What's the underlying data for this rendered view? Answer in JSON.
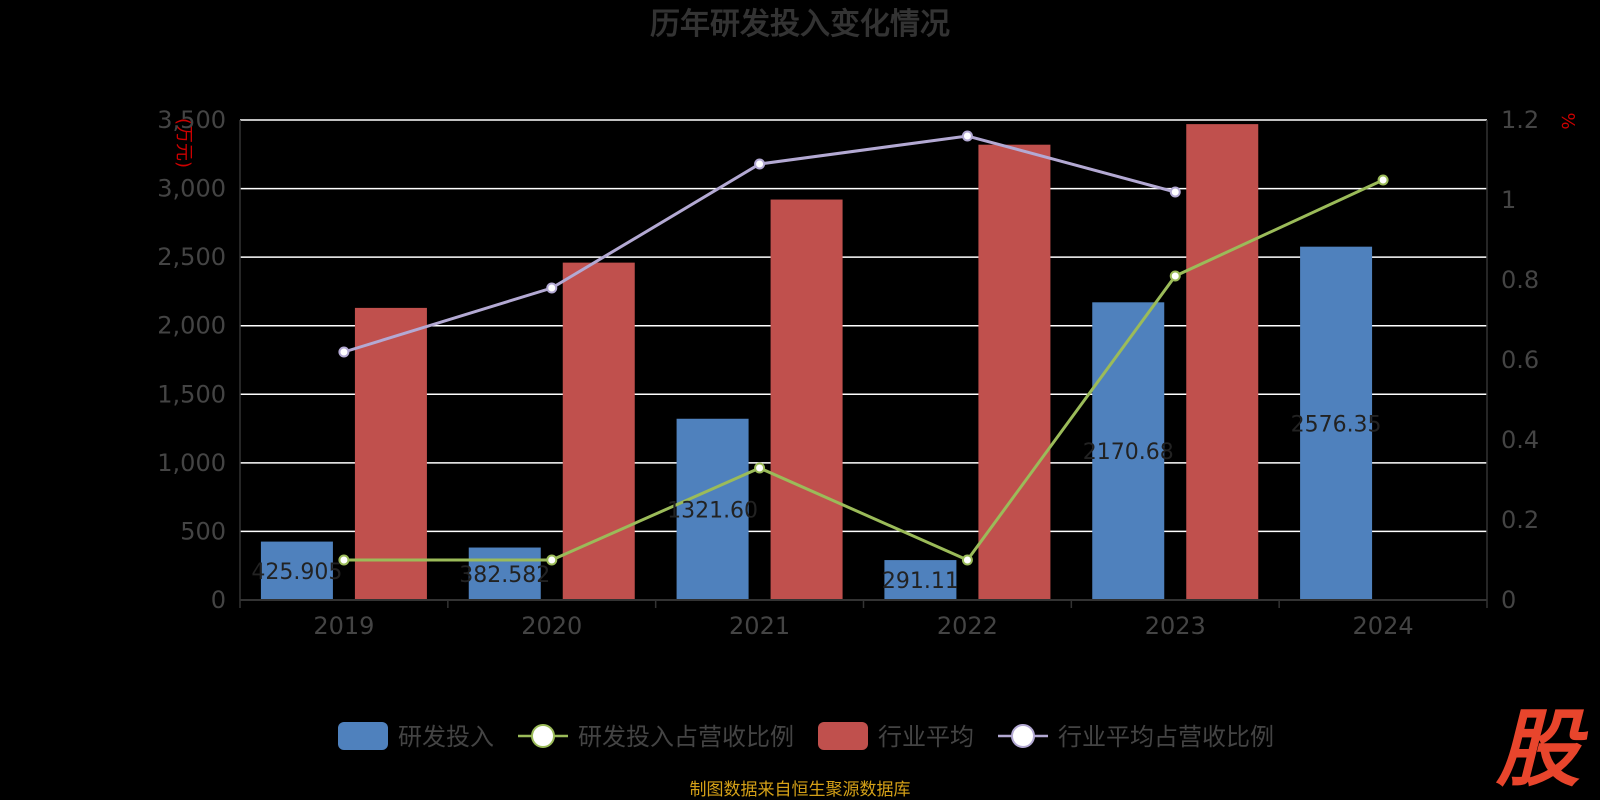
{
  "chart_data": {
    "type": "bar",
    "title": "历年研发投入变化情况",
    "categories": [
      "2019",
      "2020",
      "2021",
      "2022",
      "2023",
      "2024"
    ],
    "y_left": {
      "unit": "(万元)",
      "range": [
        0,
        3500
      ],
      "ticks": [
        "0",
        "500",
        "1,000",
        "1,500",
        "2,000",
        "2,500",
        "3,000",
        "3,500"
      ]
    },
    "y_right": {
      "unit": "%",
      "range": [
        0,
        1.2
      ],
      "ticks": [
        "0",
        "0.2",
        "0.4",
        "0.6",
        "0.8",
        "1",
        "1.2"
      ]
    },
    "series": [
      {
        "name": "研发投入",
        "type": "bar",
        "axis": "left",
        "color": "#4f81bd",
        "values": [
          425.905,
          382.582,
          1321.6,
          291.11,
          2170.68,
          2576.35
        ],
        "labels": [
          "425.905",
          "382.582",
          "1321.60",
          "291.11",
          "2170.68",
          "2576.35"
        ]
      },
      {
        "name": "研发投入占营收比例",
        "type": "line",
        "axis": "right",
        "color": "#9bbb59",
        "values": [
          0.1,
          0.1,
          0.33,
          0.1,
          0.81,
          1.05
        ]
      },
      {
        "name": "行业平均",
        "type": "bar",
        "axis": "left",
        "color": "#c0504d",
        "values": [
          2130,
          2460,
          2920,
          3320,
          3470,
          null
        ]
      },
      {
        "name": "行业平均占营收比例",
        "type": "line",
        "axis": "right",
        "color": "#b3a9d3",
        "values": [
          0.62,
          0.78,
          1.09,
          1.16,
          1.02,
          null
        ]
      }
    ],
    "grid": true,
    "legend_position": "bottom"
  },
  "source": "制图数据来自恒生聚源数据库",
  "logo_text": "股"
}
